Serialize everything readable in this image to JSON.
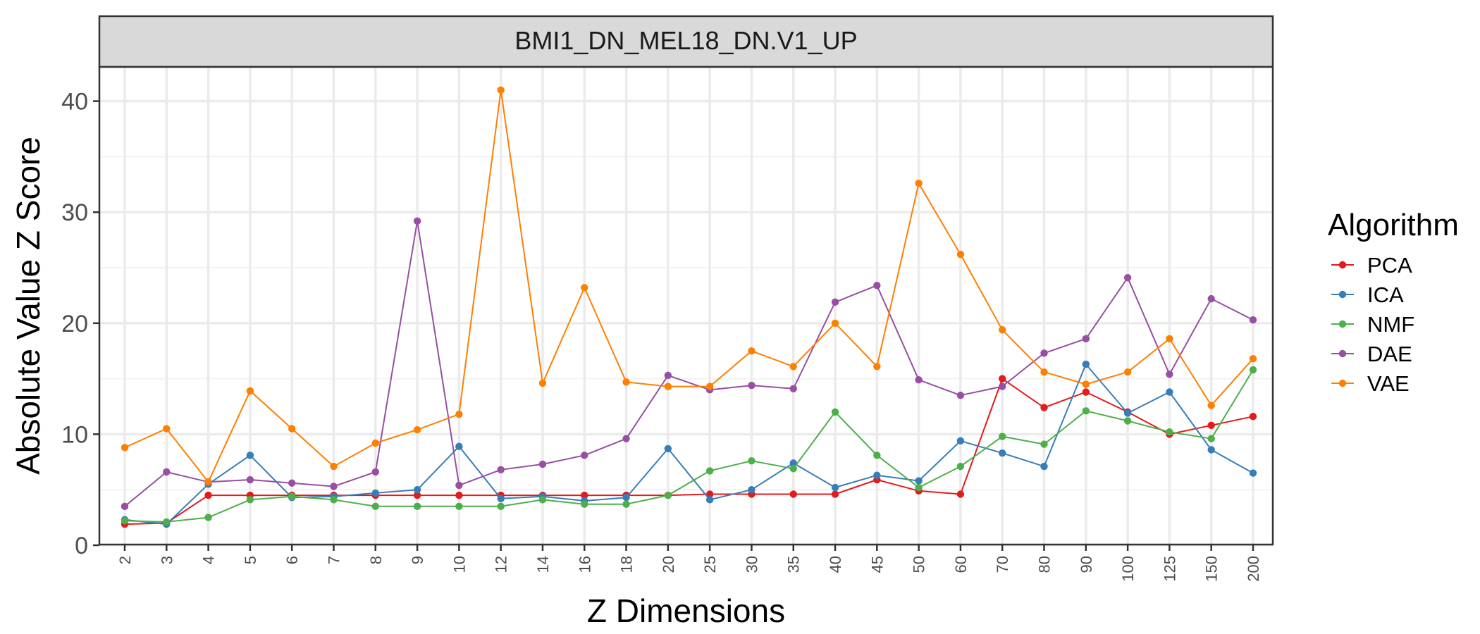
{
  "chart_data": {
    "type": "line",
    "facet_title": "BMI1_DN_MEL18_DN.V1_UP",
    "xlabel": "Z Dimensions",
    "ylabel": "Absolute Value Z Score",
    "ylim": [
      0,
      42
    ],
    "y_ticks": [
      0,
      10,
      20,
      30,
      40
    ],
    "grid": true,
    "categories": [
      "2",
      "3",
      "4",
      "5",
      "6",
      "7",
      "8",
      "9",
      "10",
      "12",
      "14",
      "16",
      "18",
      "20",
      "25",
      "30",
      "35",
      "40",
      "45",
      "50",
      "60",
      "70",
      "80",
      "90",
      "100",
      "125",
      "150",
      "200"
    ],
    "legend": {
      "title": "Algorithm",
      "position": "right"
    },
    "series": [
      {
        "name": "PCA",
        "color": "#e41a1c",
        "values": [
          1.9,
          2.0,
          4.5,
          4.5,
          4.5,
          4.5,
          4.5,
          4.5,
          4.5,
          4.5,
          4.5,
          4.5,
          4.5,
          4.5,
          4.6,
          4.6,
          4.6,
          4.6,
          5.9,
          4.9,
          4.6,
          15.0,
          12.4,
          13.8,
          12.0,
          10.0,
          10.8,
          11.6
        ]
      },
      {
        "name": "ICA",
        "color": "#377eb8",
        "values": [
          2.3,
          1.9,
          5.5,
          8.1,
          4.3,
          4.4,
          4.7,
          5.0,
          8.9,
          4.2,
          4.4,
          4.0,
          4.3,
          8.7,
          4.1,
          5.0,
          7.4,
          5.2,
          6.3,
          5.8,
          9.4,
          8.3,
          7.1,
          16.3,
          11.9,
          13.8,
          8.6,
          6.5
        ]
      },
      {
        "name": "NMF",
        "color": "#4daf4a",
        "values": [
          2.2,
          2.1,
          2.5,
          4.1,
          4.4,
          4.1,
          3.5,
          3.5,
          3.5,
          3.5,
          4.1,
          3.7,
          3.7,
          4.5,
          6.7,
          7.6,
          6.9,
          12.0,
          8.1,
          5.2,
          7.1,
          9.8,
          9.1,
          12.1,
          11.2,
          10.2,
          9.6,
          15.8
        ]
      },
      {
        "name": "DAE",
        "color": "#984ea3",
        "values": [
          3.5,
          6.6,
          5.7,
          5.9,
          5.6,
          5.3,
          6.6,
          29.2,
          5.4,
          6.8,
          7.3,
          8.1,
          9.6,
          15.3,
          14.0,
          14.4,
          14.1,
          21.9,
          23.4,
          14.9,
          13.5,
          14.3,
          17.3,
          18.6,
          24.1,
          15.4,
          22.2,
          20.3
        ]
      },
      {
        "name": "VAE",
        "color": "#ff7f00",
        "values": [
          8.8,
          10.5,
          5.7,
          13.9,
          10.5,
          7.1,
          9.2,
          10.4,
          11.8,
          41.0,
          14.6,
          23.2,
          14.7,
          14.3,
          14.3,
          17.5,
          16.1,
          20.0,
          16.1,
          32.6,
          26.2,
          19.4,
          15.6,
          14.5,
          15.6,
          18.6,
          12.6,
          16.8
        ]
      }
    ]
  }
}
